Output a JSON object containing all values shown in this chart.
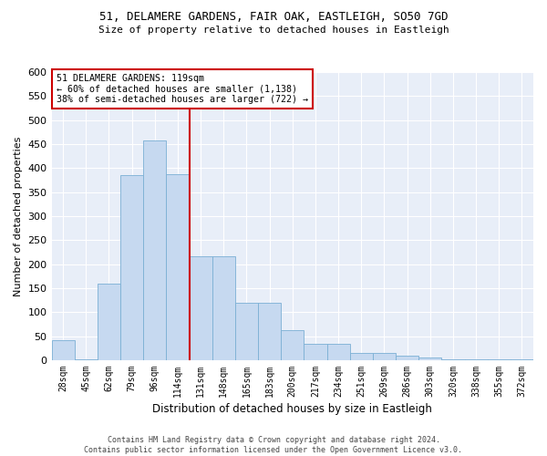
{
  "title_line1": "51, DELAMERE GARDENS, FAIR OAK, EASTLEIGH, SO50 7GD",
  "title_line2": "Size of property relative to detached houses in Eastleigh",
  "xlabel": "Distribution of detached houses by size in Eastleigh",
  "ylabel": "Number of detached properties",
  "bar_labels": [
    "28sqm",
    "45sqm",
    "62sqm",
    "79sqm",
    "96sqm",
    "114sqm",
    "131sqm",
    "148sqm",
    "165sqm",
    "183sqm",
    "200sqm",
    "217sqm",
    "234sqm",
    "251sqm",
    "269sqm",
    "286sqm",
    "303sqm",
    "320sqm",
    "338sqm",
    "355sqm",
    "372sqm"
  ],
  "bar_values": [
    42,
    2,
    160,
    385,
    458,
    387,
    217,
    217,
    120,
    120,
    63,
    35,
    35,
    15,
    15,
    10,
    5,
    2,
    2,
    1,
    1
  ],
  "bar_color": "#c6d9f0",
  "bar_edge_color": "#7bafd4",
  "vline_color": "#cc0000",
  "annotation_text": "51 DELAMERE GARDENS: 119sqm\n← 60% of detached houses are smaller (1,138)\n38% of semi-detached houses are larger (722) →",
  "annotation_box_color": "#ffffff",
  "annotation_box_edge": "#cc0000",
  "ylim": [
    0,
    600
  ],
  "yticks": [
    0,
    50,
    100,
    150,
    200,
    250,
    300,
    350,
    400,
    450,
    500,
    550,
    600
  ],
  "bg_color": "#e8eef8",
  "footer_line1": "Contains HM Land Registry data © Crown copyright and database right 2024.",
  "footer_line2": "Contains public sector information licensed under the Open Government Licence v3.0."
}
